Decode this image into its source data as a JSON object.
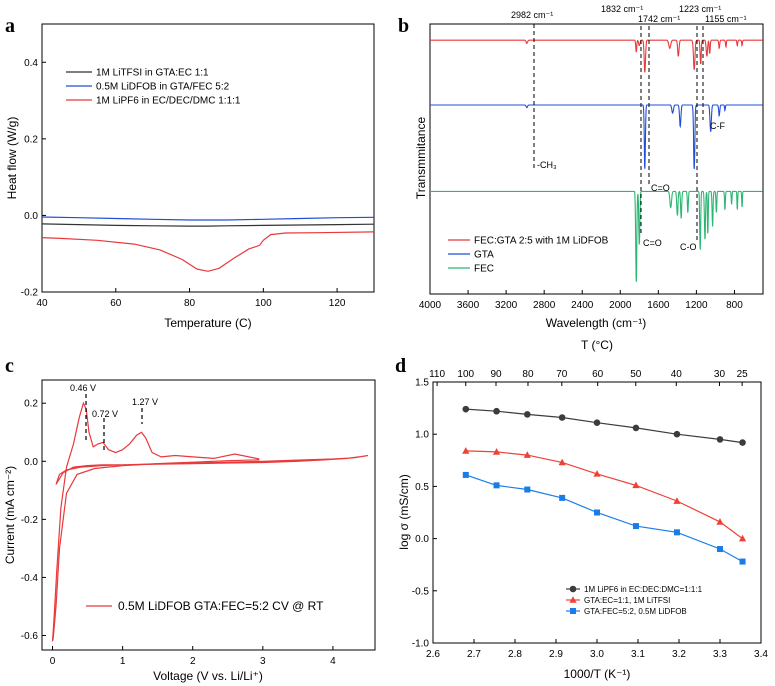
{
  "colors": {
    "black": "#333333",
    "blue": "#1f4fd8",
    "red": "#e8393b",
    "green": "#2bb673",
    "d_black": "#3c3c3c",
    "d_red": "#ef4136",
    "d_blue": "#1a7ce8"
  },
  "chart_data": [
    {
      "panel": "a",
      "type": "line",
      "xlabel": "Temperature (C)",
      "ylabel": "Heat flow (W/g)",
      "xlim": [
        40,
        130
      ],
      "ylim": [
        -0.2,
        0.5
      ],
      "xticks": [
        "40",
        "60",
        "80",
        "100",
        "120"
      ],
      "yticks": [
        "-0.2",
        "0.0",
        "0.2",
        "0.4"
      ],
      "series": [
        {
          "name": "1M LiTFSI in GTA:EC 1:1",
          "color": "black",
          "x": [
            40,
            50,
            60,
            70,
            80,
            85,
            90,
            100,
            110,
            120,
            130
          ],
          "y": [
            -0.022,
            -0.024,
            -0.026,
            -0.027,
            -0.028,
            -0.028,
            -0.027,
            -0.026,
            -0.025,
            -0.024,
            -0.023
          ]
        },
        {
          "name": "0.5M LiDFOB in GTA/FEC 5:2",
          "color": "blue",
          "x": [
            40,
            50,
            60,
            70,
            80,
            90,
            100,
            110,
            120,
            130
          ],
          "y": [
            -0.004,
            -0.006,
            -0.008,
            -0.01,
            -0.012,
            -0.012,
            -0.01,
            -0.008,
            -0.006,
            -0.005
          ]
        },
        {
          "name": "1M LiPF6 in EC/DEC/DMC 1:1:1",
          "color": "red",
          "x": [
            40,
            45,
            55,
            65,
            72,
            78,
            82,
            85,
            88,
            92,
            96,
            99,
            100,
            102,
            106,
            115,
            130
          ],
          "y": [
            -0.058,
            -0.06,
            -0.065,
            -0.075,
            -0.09,
            -0.115,
            -0.14,
            -0.146,
            -0.138,
            -0.112,
            -0.088,
            -0.078,
            -0.065,
            -0.05,
            -0.046,
            -0.045,
            -0.043
          ]
        }
      ]
    },
    {
      "panel": "b",
      "type": "line",
      "xlabel": "Wavelength (cm⁻¹)",
      "ylabel": "Transmmitance",
      "xlim": [
        4000,
        500
      ],
      "xticks": [
        "4000",
        "3600",
        "3200",
        "2800",
        "2400",
        "2000",
        "1600",
        "1200",
        "800"
      ],
      "annotations_top": [
        "2982 cm⁻¹",
        "1832 cm⁻¹",
        "1742 cm⁻¹",
        "1223 cm⁻¹",
        "1155 cm⁻¹"
      ],
      "annotations_inner": [
        "-CH₃",
        "C=O",
        "C=O",
        "C-O",
        "C-F"
      ],
      "series": [
        {
          "name": "FEC:GTA 2:5 with 1M LiDFOB",
          "color": "red",
          "baseline": 0.06
        },
        {
          "name": "GTA",
          "color": "blue",
          "baseline": 0.3
        },
        {
          "name": "FEC",
          "color": "green",
          "baseline": 0.62
        }
      ]
    },
    {
      "panel": "c",
      "type": "line",
      "xlabel": "Voltage (V vs. Li/Li⁺)",
      "ylabel": "Current (mA cm⁻²)",
      "xlim": [
        -0.15,
        4.6
      ],
      "ylim": [
        -0.65,
        0.28
      ],
      "xticks": [
        "0",
        "1",
        "2",
        "3",
        "4"
      ],
      "yticks": [
        "-0.6",
        "-0.4",
        "-0.2",
        "0.0",
        "0.2"
      ],
      "peaks": [
        "0.46 V",
        "0.72 V",
        "1.27 V"
      ],
      "series": [
        {
          "name": "0.5M LiDFOB GTA:FEC=5:2 CV @ RT",
          "color": "red"
        }
      ]
    },
    {
      "panel": "d",
      "type": "line",
      "xlabel": "1000/T (K⁻¹)",
      "ylabel": "log σ (mS/cm)",
      "top_xlabel": "T (°C)",
      "xlim": [
        2.6,
        3.4
      ],
      "ylim": [
        -1.0,
        1.5
      ],
      "xticks": [
        "2.6",
        "2.7",
        "2.8",
        "2.9",
        "3.0",
        "3.1",
        "3.2",
        "3.3",
        "3.4"
      ],
      "yticks": [
        "-1.0",
        "-0.5",
        "0.0",
        "0.5",
        "1.0",
        "1.5"
      ],
      "top_ticks": [
        "110",
        "100",
        "90",
        "80",
        "70",
        "60",
        "50",
        "40",
        "30",
        "25"
      ],
      "top_tick_celsius": [
        110,
        100,
        90,
        80,
        70,
        60,
        50,
        40,
        30,
        25
      ],
      "x": [
        2.68,
        2.755,
        2.83,
        2.915,
        3.0,
        3.095,
        3.195,
        3.3,
        3.355
      ],
      "series": [
        {
          "name": "1M LiPF6 in EC:DEC:DMC=1:1:1",
          "color": "d_black",
          "marker": "circle",
          "values": [
            1.24,
            1.22,
            1.19,
            1.16,
            1.11,
            1.06,
            1.0,
            0.95,
            0.92
          ]
        },
        {
          "name": "GTA:EC=1:1,  1M LiTFSI",
          "color": "d_red",
          "marker": "triangle",
          "values": [
            0.84,
            0.83,
            0.8,
            0.73,
            0.62,
            0.51,
            0.36,
            0.16,
            0.0
          ]
        },
        {
          "name": "GTA:FEC=5:2, 0.5M LiDFOB",
          "color": "d_blue",
          "marker": "square",
          "values": [
            0.61,
            0.51,
            0.47,
            0.39,
            0.25,
            0.12,
            0.06,
            -0.1,
            -0.22
          ]
        }
      ]
    }
  ]
}
